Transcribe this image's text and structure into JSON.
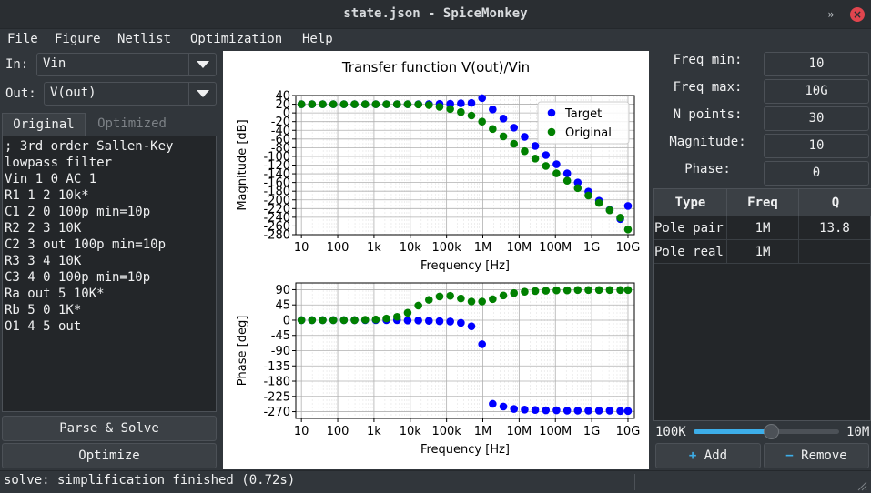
{
  "window": {
    "title": "state.json - SpiceMonkey",
    "minimize": "-",
    "maximize": "»",
    "close": "×"
  },
  "menu": [
    "File",
    "Figure",
    "Netlist",
    "Optimization",
    "Help"
  ],
  "left": {
    "in_label": "In:",
    "in_value": "Vin",
    "out_label": "Out:",
    "out_value": "V(out)",
    "tabs": {
      "original": "Original",
      "optimized": "Optimized",
      "active": "Original"
    },
    "netlist": [
      "; 3rd order Sallen-Key",
      "lowpass filter",
      "Vin 1 0 AC 1",
      "R1 1 2 10k*",
      "C1 2 0 100p min=10p",
      "R2 2 3 10K",
      "C2 3 out 100p min=10p",
      "R3 3 4 10K",
      "C3 4 0 100p min=10p",
      "Ra out 5 10K*",
      "Rb 5 0 1K*",
      "O1 4 5 out"
    ],
    "parse_button": "Parse & Solve",
    "optimize_button": "Optimize"
  },
  "right": {
    "freq_min_label": "Freq min:",
    "freq_min": "10",
    "freq_max_label": "Freq max:",
    "freq_max": "10G",
    "npoints_label": "N points:",
    "npoints": "30",
    "magnitude_label": "Magnitude:",
    "magnitude": "10",
    "phase_label": "Phase:",
    "phase": "0",
    "table": {
      "headers": [
        "Type",
        "Freq",
        "Q"
      ],
      "rows": [
        [
          "Pole pair",
          "1M",
          "13.8"
        ],
        [
          "Pole real",
          "1M",
          ""
        ]
      ]
    },
    "slider": {
      "min_label": "100K",
      "max_label": "10M",
      "value_fraction": 0.53
    },
    "add_button": "Add",
    "remove_button": "Remove"
  },
  "status": "solve: simplification finished (0.72s)",
  "colors": {
    "target": "#0000ff",
    "original": "#008000",
    "accent": "#3daee9"
  },
  "chart_data": {
    "type": "scatter",
    "title": "Transfer function V(out)/Vin",
    "xscale": "log",
    "x": [
      "10",
      "19.6",
      "38.5",
      "75.6",
      "148",
      "291",
      "572",
      "1.12k",
      "2.2k",
      "4.32k",
      "8.48k",
      "16.7k",
      "32.7k",
      "64.2k",
      "126k",
      "248k",
      "486k",
      "954k",
      "1.87M",
      "3.68M",
      "7.22M",
      "14.2M",
      "27.8M",
      "54.6M",
      "107M",
      "211M",
      "413M",
      "811M",
      "1.59G",
      "3.13G",
      "6.14G",
      "10G"
    ],
    "x_ticks": [
      "10",
      "100",
      "1k",
      "10k",
      "100k",
      "1M",
      "10M",
      "100M",
      "1G",
      "10G"
    ],
    "x_tick_values": [
      10,
      100,
      1000,
      10000,
      100000,
      1000000,
      10000000,
      100000000,
      1000000000,
      10000000000
    ],
    "x_values": [
      10,
      19.6,
      38.5,
      75.6,
      148,
      291,
      572,
      1120,
      2200,
      4320,
      8480,
      16700,
      32700,
      64200,
      126000,
      248000,
      486000,
      954000,
      1870000,
      3680000,
      7220000,
      14200000,
      27800000,
      54600000,
      107000000,
      211000000,
      413000000,
      811000000,
      1590000000,
      3130000000,
      6140000000,
      10000000000
    ],
    "subplots": [
      {
        "ylabel": "Magnitude [dB]",
        "xlabel": "Frequency [Hz]",
        "ylim": [
          -280,
          40
        ],
        "y_ticks": [
          40,
          20,
          0,
          -20,
          -40,
          -60,
          -80,
          -100,
          -120,
          -140,
          -160,
          -180,
          -200,
          -220,
          -240,
          -260,
          -280
        ],
        "legend": "top-right",
        "series": [
          {
            "name": "Target",
            "color": "#0000ff",
            "values": [
              20,
              20,
              20,
              20,
              20,
              20,
              20,
              20,
              20,
              20,
              20,
              20,
              20.2,
              20.8,
              21,
              22,
              23,
              34,
              8,
              -13,
              -34,
              -55,
              -76,
              -97,
              -118,
              -139,
              -160,
              -181,
              -202,
              -223,
              -244,
              -214
            ]
          },
          {
            "name": "Original",
            "color": "#008000",
            "values": [
              20,
              20,
              20,
              20,
              20,
              20,
              20,
              20,
              20,
              20,
              20,
              19.5,
              18,
              14,
              9,
              2,
              -6,
              -20,
              -37,
              -54,
              -71,
              -88,
              -105,
              -122,
              -139,
              -156,
              -173,
              -190,
              -207,
              -224,
              -241,
              -268
            ]
          }
        ]
      },
      {
        "ylabel": "Phase [deg]",
        "xlabel": "Frequency [Hz]",
        "ylim": [
          -290,
          110
        ],
        "y_ticks": [
          90,
          45,
          0,
          -45,
          -90,
          -135,
          -180,
          -225,
          -270
        ],
        "series": [
          {
            "name": "Target",
            "color": "#0000ff",
            "values": [
              0,
              0,
              0,
              0,
              0,
              0,
              0,
              0,
              0,
              0,
              -1,
              -1,
              -2,
              -3,
              -4,
              -8,
              -18,
              -71,
              -247,
              -255,
              -262,
              -264,
              -265,
              -266,
              -266,
              -267,
              -267,
              -267,
              -267,
              -267,
              -268,
              -268
            ]
          },
          {
            "name": "Original",
            "color": "#008000",
            "values": [
              0,
              0,
              0,
              0,
              0,
              0,
              1,
              2,
              5,
              10,
              22,
              43,
              60,
              70,
              72,
              64,
              55,
              55,
              62,
              73,
              80,
              84,
              86,
              87,
              88,
              88,
              89,
              89,
              89,
              89,
              89,
              89
            ]
          }
        ]
      }
    ]
  }
}
